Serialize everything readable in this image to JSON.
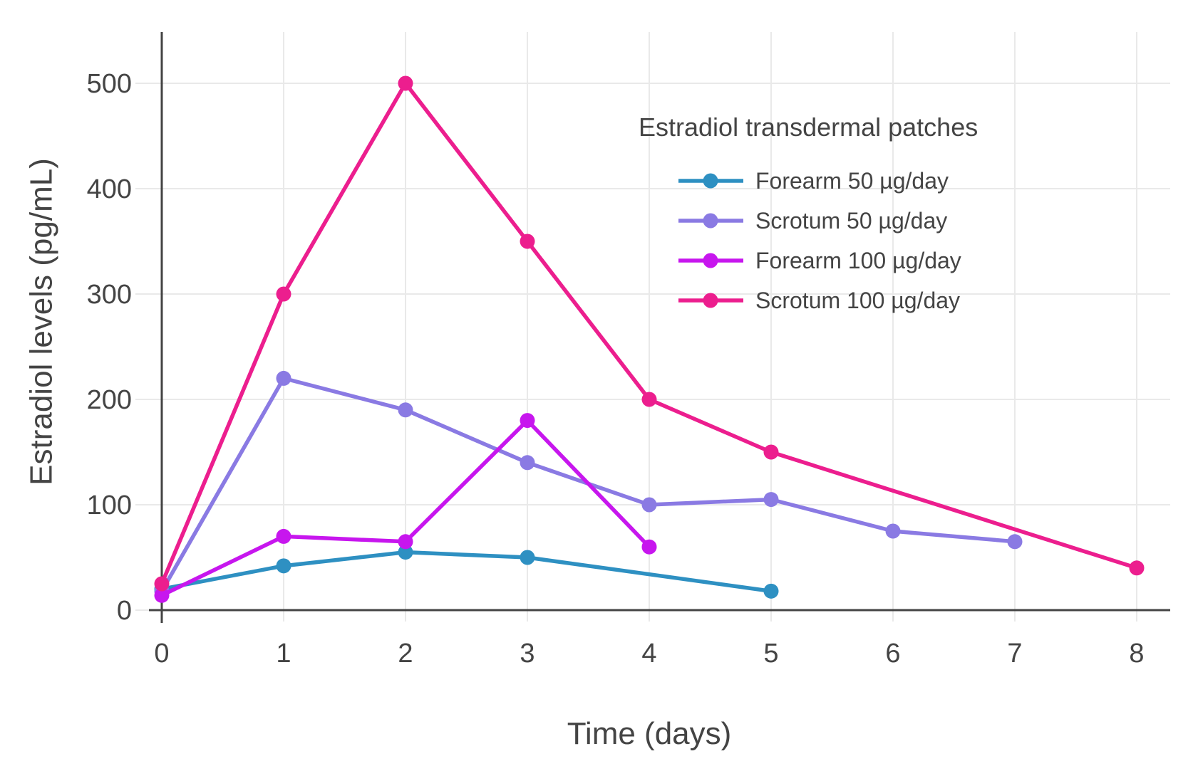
{
  "chart_data": {
    "type": "line",
    "legend_title": "Estradiol transdermal patches",
    "xlabel": "Time (days)",
    "ylabel": "Estradiol levels (pg/mL)",
    "x_ticks": [
      0,
      1,
      2,
      3,
      4,
      5,
      6,
      7,
      8
    ],
    "y_ticks": [
      0,
      100,
      200,
      300,
      400,
      500
    ],
    "xlim": [
      0,
      8.3
    ],
    "ylim": [
      0,
      550
    ],
    "grid": true,
    "legend_position": "top-right-inside",
    "marker_style": "circle",
    "series": [
      {
        "name": "Forearm 50 µg/day",
        "color": "#2E90C2",
        "x": [
          0,
          1,
          2,
          3,
          5
        ],
        "y": [
          20,
          42,
          55,
          50,
          18
        ]
      },
      {
        "name": "Scrotum 50 µg/day",
        "color": "#8A7AE3",
        "x": [
          0,
          1,
          2,
          3,
          4,
          5,
          6,
          7
        ],
        "y": [
          18,
          220,
          190,
          140,
          100,
          105,
          75,
          65
        ]
      },
      {
        "name": "Forearm 100 µg/day",
        "color": "#C716EE",
        "x": [
          0,
          1,
          2,
          3,
          4
        ],
        "y": [
          14,
          70,
          65,
          180,
          60
        ]
      },
      {
        "name": "Scrotum 100 µg/day",
        "color": "#EC1E8E",
        "x": [
          0,
          1,
          2,
          3,
          4,
          5,
          8
        ],
        "y": [
          25,
          300,
          500,
          350,
          200,
          150,
          40
        ]
      }
    ],
    "colors": {
      "background": "#ffffff",
      "grid": "#e9e9e9",
      "axis": "#444444",
      "text": "#444444"
    }
  }
}
